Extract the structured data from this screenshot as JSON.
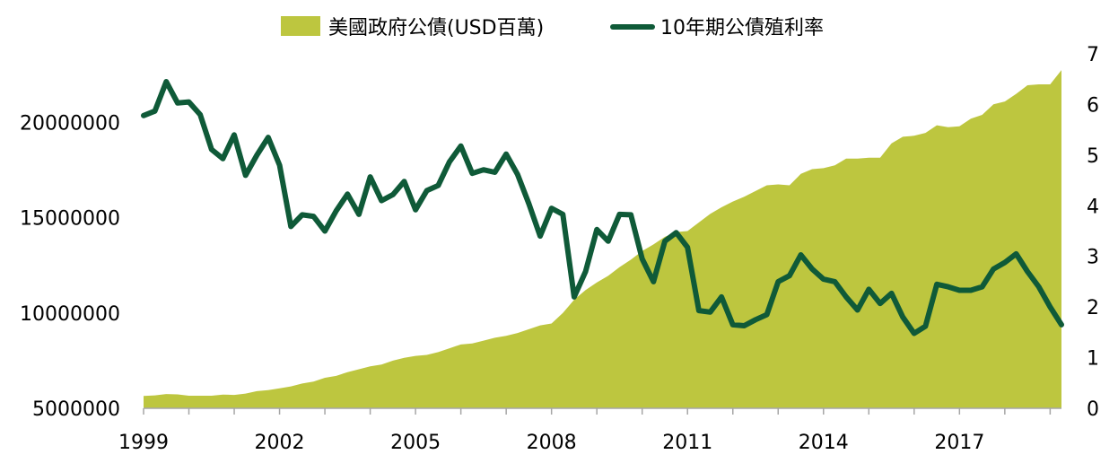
{
  "chart_data": {
    "type": "area+line",
    "legend": [
      {
        "label": "美國政府公債(USD百萬)",
        "color": "#bdc63f",
        "kind": "area"
      },
      {
        "label": "10年期公債殖利率",
        "color": "#0f5a38",
        "kind": "line"
      }
    ],
    "legend_position": "top-center",
    "x_ticks": [
      "1999",
      "2002",
      "2005",
      "2008",
      "2011",
      "2014",
      "2017"
    ],
    "x_range": [
      1999.0,
      2019.25
    ],
    "y_left": {
      "ticks": [
        "5000000",
        "10000000",
        "15000000",
        "20000000"
      ],
      "range": [
        5000000,
        23600000
      ]
    },
    "y_right": {
      "ticks": [
        "0",
        "1",
        "2",
        "3",
        "4",
        "5",
        "6",
        "7"
      ],
      "range": [
        0,
        7
      ]
    },
    "grid": false,
    "series": [
      {
        "name": "美國政府公債(USD百萬)",
        "kind": "area",
        "axis": "left",
        "color": "#bdc63f",
        "x": [
          1999.0,
          1999.25,
          1999.5,
          1999.75,
          2000.0,
          2000.25,
          2000.5,
          2000.75,
          2001.0,
          2001.25,
          2001.5,
          2001.75,
          2002.0,
          2002.25,
          2002.5,
          2002.75,
          2003.0,
          2003.25,
          2003.5,
          2003.75,
          2004.0,
          2004.25,
          2004.5,
          2004.75,
          2005.0,
          2005.25,
          2005.5,
          2005.75,
          2006.0,
          2006.25,
          2006.5,
          2006.75,
          2007.0,
          2007.25,
          2007.5,
          2007.75,
          2008.0,
          2008.25,
          2008.5,
          2008.75,
          2009.0,
          2009.25,
          2009.5,
          2009.75,
          2010.0,
          2010.25,
          2010.5,
          2010.75,
          2011.0,
          2011.25,
          2011.5,
          2011.75,
          2012.0,
          2012.25,
          2012.5,
          2012.75,
          2013.0,
          2013.25,
          2013.5,
          2013.75,
          2014.0,
          2014.25,
          2014.5,
          2014.75,
          2015.0,
          2015.25,
          2015.5,
          2015.75,
          2016.0,
          2016.25,
          2016.5,
          2016.75,
          2017.0,
          2017.25,
          2017.5,
          2017.75,
          2018.0,
          2018.25,
          2018.5,
          2018.75,
          2019.0,
          2019.25
        ],
        "values": [
          5650000,
          5680000,
          5750000,
          5730000,
          5660000,
          5660000,
          5660000,
          5720000,
          5700000,
          5770000,
          5900000,
          5950000,
          6050000,
          6150000,
          6300000,
          6400000,
          6600000,
          6700000,
          6900000,
          7050000,
          7200000,
          7300000,
          7500000,
          7650000,
          7750000,
          7800000,
          7950000,
          8150000,
          8350000,
          8400000,
          8550000,
          8700000,
          8800000,
          8950000,
          9150000,
          9350000,
          9450000,
          10000000,
          10700000,
          11200000,
          11600000,
          11950000,
          12400000,
          12800000,
          13250000,
          13600000,
          14000000,
          14250000,
          14300000,
          14750000,
          15200000,
          15550000,
          15850000,
          16100000,
          16400000,
          16700000,
          16750000,
          16700000,
          17300000,
          17550000,
          17600000,
          17750000,
          18100000,
          18100000,
          18150000,
          18150000,
          18900000,
          19250000,
          19300000,
          19450000,
          19850000,
          19750000,
          19800000,
          20200000,
          20400000,
          20950000,
          21100000,
          21500000,
          21950000,
          22000000,
          22000000,
          22750000
        ]
      },
      {
        "name": "10年期公債殖利率",
        "kind": "line",
        "axis": "right",
        "color": "#0f5a38",
        "x": [
          1999.0,
          1999.25,
          1999.5,
          1999.75,
          2000.0,
          2000.25,
          2000.5,
          2000.75,
          2001.0,
          2001.25,
          2001.5,
          2001.75,
          2002.0,
          2002.25,
          2002.5,
          2002.75,
          2003.0,
          2003.25,
          2003.5,
          2003.75,
          2004.0,
          2004.25,
          2004.5,
          2004.75,
          2005.0,
          2005.25,
          2005.5,
          2005.75,
          2006.0,
          2006.25,
          2006.5,
          2006.75,
          2007.0,
          2007.25,
          2007.5,
          2007.75,
          2008.0,
          2008.25,
          2008.5,
          2008.75,
          2009.0,
          2009.25,
          2009.5,
          2009.75,
          2010.0,
          2010.25,
          2010.5,
          2010.75,
          2011.0,
          2011.25,
          2011.5,
          2011.75,
          2012.0,
          2012.25,
          2012.5,
          2012.75,
          2013.0,
          2013.25,
          2013.5,
          2013.75,
          2014.0,
          2014.25,
          2014.5,
          2014.75,
          2015.0,
          2015.25,
          2015.5,
          2015.75,
          2016.0,
          2016.25,
          2016.5,
          2016.75,
          2017.0,
          2017.25,
          2017.5,
          2017.75,
          2018.0,
          2018.25,
          2018.5,
          2018.75,
          2019.0,
          2019.25
        ],
        "values": [
          5.78,
          5.87,
          6.45,
          6.03,
          6.05,
          5.8,
          5.11,
          4.93,
          5.4,
          4.6,
          5.0,
          5.35,
          4.8,
          3.59,
          3.82,
          3.79,
          3.5,
          3.9,
          4.23,
          3.83,
          4.57,
          4.1,
          4.22,
          4.48,
          3.92,
          4.3,
          4.4,
          4.87,
          5.18,
          4.64,
          4.71,
          4.66,
          5.02,
          4.62,
          4.04,
          3.4,
          3.95,
          3.83,
          2.2,
          2.7,
          3.53,
          3.3,
          3.83,
          3.82,
          2.95,
          2.5,
          3.3,
          3.47,
          3.18,
          1.93,
          1.9,
          2.2,
          1.65,
          1.63,
          1.75,
          1.85,
          2.5,
          2.62,
          3.03,
          2.75,
          2.55,
          2.5,
          2.2,
          1.94,
          2.35,
          2.07,
          2.27,
          1.8,
          1.48,
          1.62,
          2.45,
          2.4,
          2.33,
          2.33,
          2.4,
          2.75,
          2.88,
          3.05,
          2.7,
          2.4,
          2.0,
          1.65
        ]
      }
    ]
  }
}
